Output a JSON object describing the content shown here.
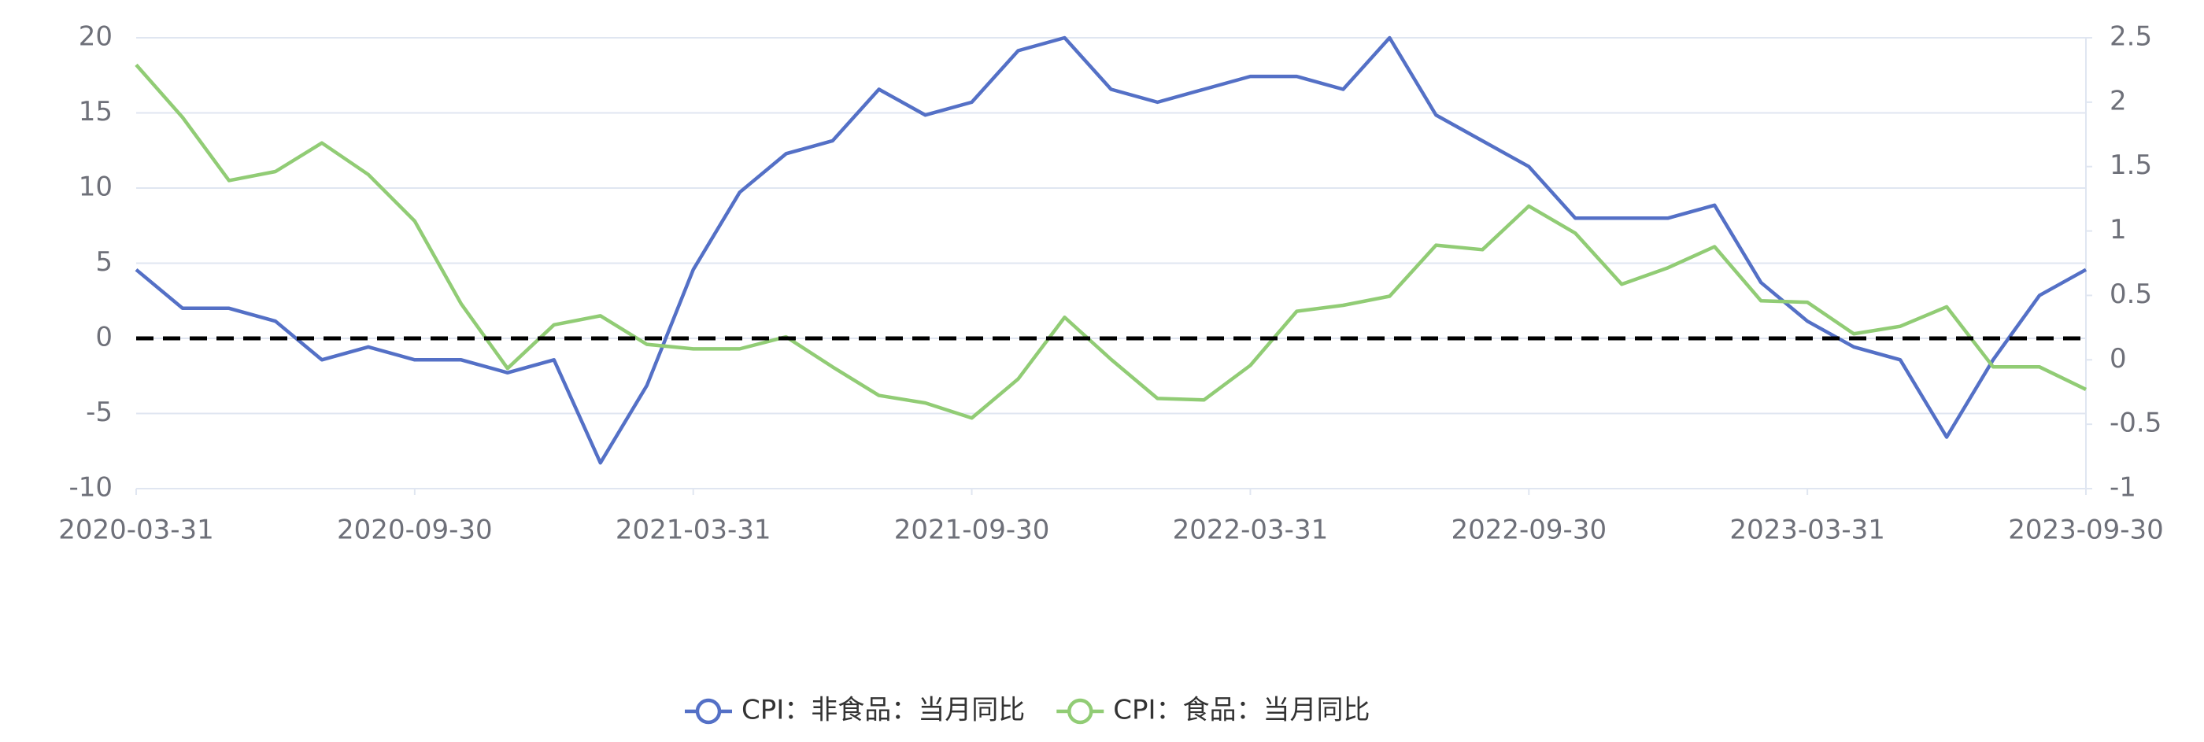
{
  "chart_data": {
    "type": "line",
    "categories": [
      "2020-03-31",
      null,
      null,
      null,
      null,
      null,
      "2020-09-30",
      null,
      null,
      null,
      null,
      null,
      "2021-03-31",
      null,
      null,
      null,
      null,
      null,
      "2021-09-30",
      null,
      null,
      null,
      null,
      null,
      "2022-03-31",
      null,
      null,
      null,
      null,
      null,
      "2022-09-30",
      null,
      null,
      null,
      null,
      null,
      "2023-03-31",
      null,
      null,
      null,
      null,
      null,
      "2023-09-30"
    ],
    "series": [
      {
        "name": "CPI：非食品：当月同比",
        "color": "#5470c6",
        "axis": "y2",
        "values": [
          0.7,
          0.4,
          0.4,
          0.3,
          0,
          0.1,
          0,
          0,
          -0.1,
          0,
          -0.8,
          -0.2,
          0.7,
          1.3,
          1.6,
          1.7,
          2.1,
          1.9,
          2.0,
          2.4,
          2.5,
          2.1,
          2.0,
          2.1,
          2.2,
          2.2,
          2.1,
          2.5,
          1.9,
          1.7,
          1.5,
          1.1,
          1.1,
          1.1,
          1.2,
          0.6,
          0.3,
          0.1,
          0,
          -0.6,
          0,
          0.5,
          0.7
        ]
      },
      {
        "name": "CPI：食品：当月同比",
        "color": "#91cc75",
        "values": [
          18.2,
          14.7,
          10.5,
          11.1,
          13.0,
          10.9,
          7.8,
          2.3,
          -2.0,
          0.9,
          1.5,
          -0.4,
          -0.7,
          -0.7,
          0.1,
          -1.9,
          -3.8,
          -4.3,
          -5.3,
          -2.7,
          1.4,
          -1.4,
          -4.0,
          -4.1,
          -1.8,
          1.8,
          2.2,
          2.8,
          6.2,
          5.9,
          8.8,
          7.0,
          3.6,
          4.7,
          6.1,
          2.5,
          2.4,
          0.3,
          0.8,
          2.1,
          -1.9,
          -1.9,
          -3.4
        ]
      }
    ],
    "ylim": [
      -10,
      20
    ],
    "yticks": [
      -10,
      -5,
      0,
      5,
      10,
      15,
      20
    ],
    "y2lim": [
      -1,
      2.5
    ],
    "y2ticks": [
      -1,
      -0.5,
      0,
      0.5,
      1,
      1.5,
      2,
      2.5
    ],
    "hline": 0,
    "grid": true,
    "legend": "bottom"
  }
}
